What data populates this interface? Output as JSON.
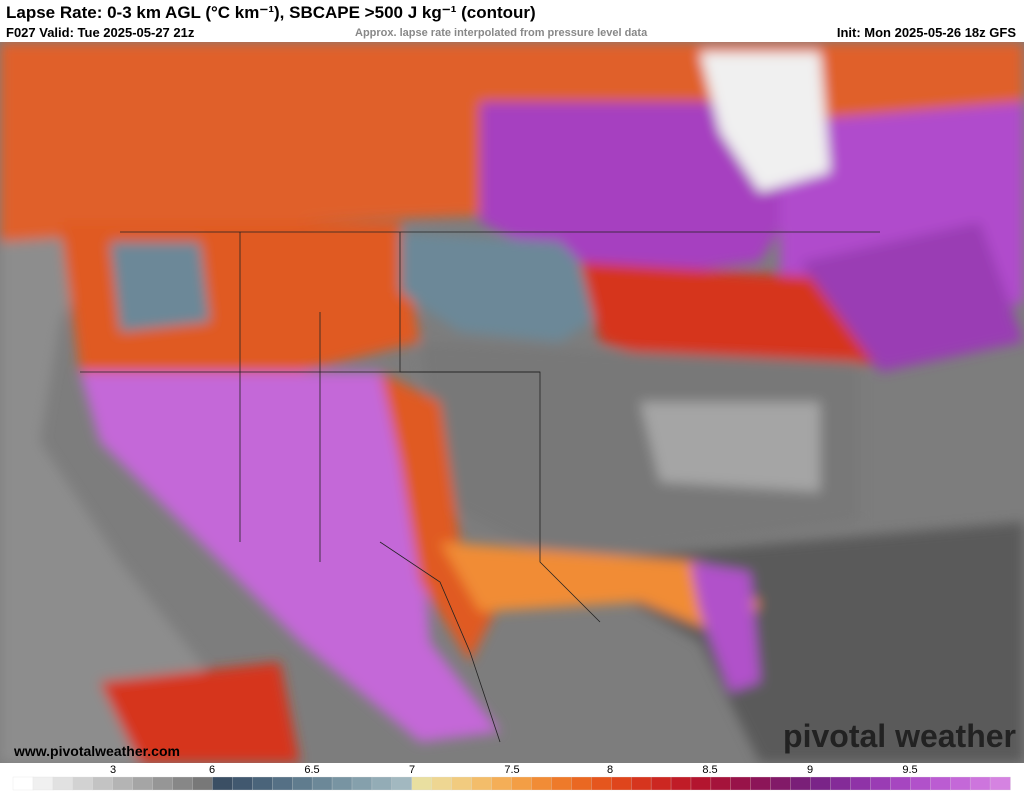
{
  "header": {
    "title": "Lapse Rate: 0-3 km AGL (°C km⁻¹), SBCAPE >500 J kg⁻¹ (contour)",
    "valid": "F027 Valid: Tue 2025-05-27 21z",
    "note": "Approx. lapse rate interpolated from pressure level data",
    "init": "Init: Mon 2025-05-26 18z GFS"
  },
  "map": {
    "website": "www.pivotalweather.com",
    "watermark": "pivotal weather"
  },
  "colorbar": {
    "ticks": [
      3,
      6,
      6.5,
      7,
      7.5,
      8,
      8.5,
      9,
      9.5
    ],
    "colors": [
      "#ffffff",
      "#f0f0f0",
      "#e1e1e1",
      "#d2d2d2",
      "#c3c3c3",
      "#b4b4b4",
      "#a5a5a5",
      "#969696",
      "#878787",
      "#787878",
      "#3b4f64",
      "#41586f",
      "#4a647a",
      "#557085",
      "#607c8e",
      "#6c8898",
      "#7894a2",
      "#85a0ac",
      "#93acb6",
      "#a2b8c0",
      "#e9dfa0",
      "#eed692",
      "#f1cb7f",
      "#f3bd6a",
      "#f4ae57",
      "#f39e45",
      "#f18c36",
      "#ee7a2a",
      "#ea6822",
      "#e5561e",
      "#df451c",
      "#d6351e",
      "#cc2721",
      "#c01c27",
      "#b3152f",
      "#a5133b",
      "#981349",
      "#8c1558",
      "#821a68",
      "#7a1f78",
      "#7a2488",
      "#842b98",
      "#8f33a7",
      "#9a3cb4",
      "#a646c0",
      "#b151ca",
      "#bb5cd2",
      "#c468d8",
      "#cd75dd",
      "#d583e1"
    ]
  }
}
